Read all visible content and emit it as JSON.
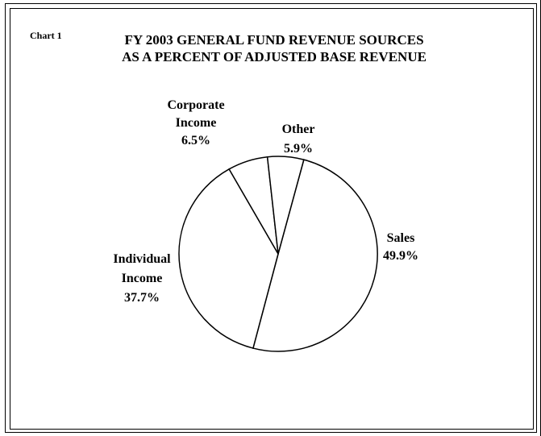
{
  "chart_label": "Chart 1",
  "title_lines": [
    "FY 2003 GENERAL FUND REVENUE SOURCES",
    "AS A PERCENT OF ADJUSTED BASE REVENUE"
  ],
  "chart_data": {
    "type": "pie",
    "title": "FY 2003 GENERAL FUND REVENUE SOURCES AS A PERCENT OF ADJUSTED BASE REVENUE",
    "categories": [
      "Sales",
      "Individual Income",
      "Corporate Income",
      "Other"
    ],
    "values": [
      49.9,
      37.7,
      6.5,
      5.9
    ],
    "labels": [
      {
        "lines": [
          "Sales",
          "49.9%"
        ]
      },
      {
        "lines": [
          "Individual",
          "Income",
          "37.7%"
        ]
      },
      {
        "lines": [
          "Corporate",
          "Income",
          "6.5%"
        ]
      },
      {
        "lines": [
          "Other",
          "5.9%"
        ]
      }
    ],
    "slice_fill": "#ffffff",
    "stroke": "#000000",
    "legend": "none"
  }
}
